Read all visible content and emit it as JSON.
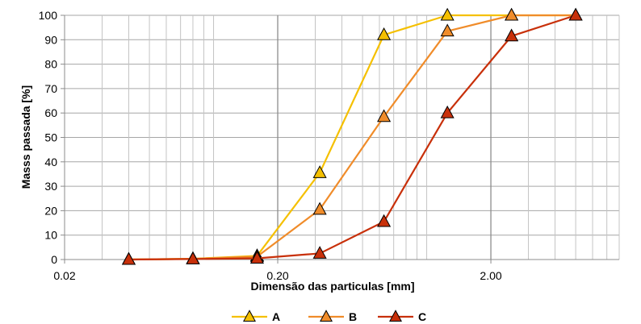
{
  "chart_data": {
    "type": "line",
    "xscale": "log",
    "xlim": [
      0.02,
      8
    ],
    "ylim": [
      0,
      100
    ],
    "grid": true,
    "legend_position": "bottom",
    "xlabel": "Dimensão das particulas  [mm]",
    "ylabel": "Masss passada [%]",
    "x_tick_labels": [
      {
        "value": 0.02,
        "label": "0.02"
      },
      {
        "value": 0.2,
        "label": "0.20"
      },
      {
        "value": 2,
        "label": "2.00"
      }
    ],
    "y_ticks": [
      0,
      10,
      20,
      30,
      40,
      50,
      60,
      70,
      80,
      90,
      100
    ],
    "x": [
      0.04,
      0.08,
      0.16,
      0.315,
      0.63,
      1.25,
      2.5,
      5
    ],
    "series": [
      {
        "name": "A",
        "color": "#f5c000",
        "values": [
          0,
          0.3,
          1.5,
          35.5,
          92,
          100,
          100,
          100
        ]
      },
      {
        "name": "B",
        "color": "#f08c2a",
        "values": [
          0,
          0.3,
          1.2,
          20.5,
          58.5,
          93.5,
          100,
          100
        ]
      },
      {
        "name": "C",
        "color": "#c8300a",
        "values": [
          0,
          0.2,
          0.5,
          2.5,
          15.5,
          60,
          91.5,
          100
        ]
      }
    ]
  }
}
